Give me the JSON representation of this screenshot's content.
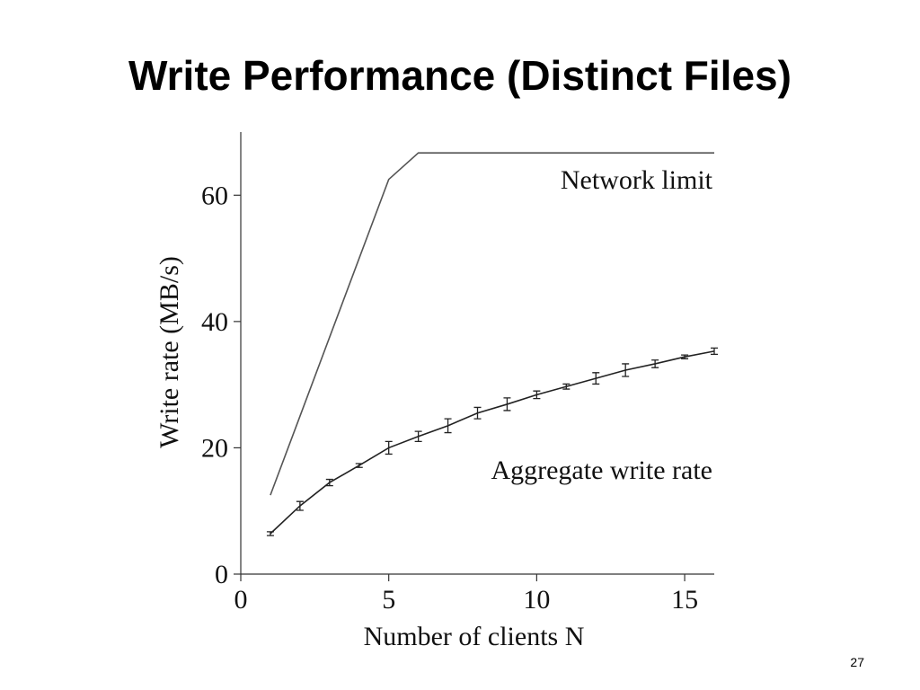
{
  "slide": {
    "title": "Write Performance (Distinct Files)",
    "page": "27"
  },
  "chart_data": {
    "type": "line",
    "x_label": "Number of clients N",
    "y_label": "Write rate (MB/s)",
    "x": [
      1,
      2,
      3,
      4,
      5,
      6,
      7,
      8,
      9,
      10,
      11,
      12,
      13,
      14,
      15,
      16
    ],
    "series": [
      {
        "name": "Network limit",
        "color": "#555555",
        "values": [
          12.5,
          25,
          37.5,
          50,
          62.5,
          66.7,
          66.7,
          66.7,
          66.7,
          66.7,
          66.7,
          66.7,
          66.7,
          66.7,
          66.7,
          66.7
        ]
      },
      {
        "name": "Aggregate write rate",
        "color": "#222222",
        "values": [
          6.4,
          10.8,
          14.5,
          17.2,
          20.0,
          21.8,
          23.5,
          25.5,
          26.9,
          28.4,
          29.7,
          31.0,
          32.3,
          33.3,
          34.4,
          35.3
        ],
        "errors": [
          0.3,
          0.7,
          0.5,
          0.3,
          1.0,
          0.8,
          1.1,
          0.9,
          1.0,
          0.6,
          0.4,
          0.9,
          1.0,
          0.6,
          0.3,
          0.5
        ]
      }
    ],
    "xlim": [
      0,
      16
    ],
    "xticks": [
      0,
      5,
      10,
      15
    ],
    "ylim": [
      0,
      70
    ],
    "yticks": [
      0,
      20,
      40,
      60
    ],
    "grid": false
  }
}
